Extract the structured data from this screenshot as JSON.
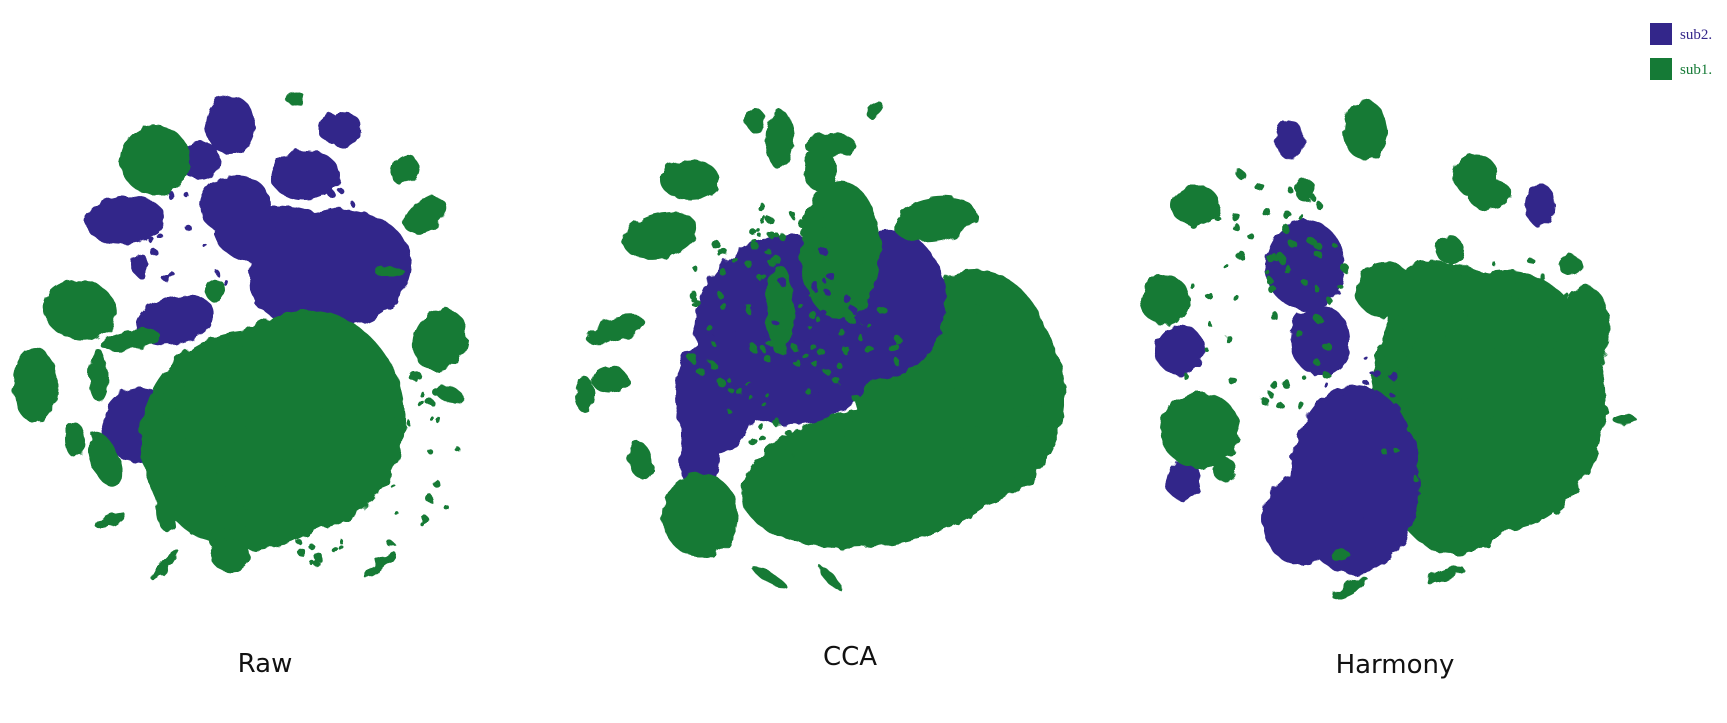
{
  "colors": {
    "sub2": "#33268a",
    "sub1": "#157a36"
  },
  "legend": {
    "items": [
      {
        "label": "sub2.",
        "color": "#33268a"
      },
      {
        "label": "sub1.",
        "color": "#157a36"
      }
    ]
  },
  "chart_data": [
    {
      "type": "scatter",
      "title": "Raw",
      "series": [
        {
          "name": "sub2.",
          "color": "#33268a"
        },
        {
          "name": "sub1.",
          "color": "#157a36"
        }
      ],
      "grid": false,
      "axes_visible": false,
      "legend_position": "top-right"
    },
    {
      "type": "scatter",
      "title": "CCA",
      "series": [
        {
          "name": "sub2.",
          "color": "#33268a"
        },
        {
          "name": "sub1.",
          "color": "#157a36"
        }
      ],
      "grid": false,
      "axes_visible": false,
      "legend_position": "top-right"
    },
    {
      "type": "scatter",
      "title": "Harmony",
      "series": [
        {
          "name": "sub2.",
          "color": "#33268a"
        },
        {
          "name": "sub1.",
          "color": "#157a36"
        }
      ],
      "grid": false,
      "axes_visible": false,
      "legend_position": "top-right"
    }
  ]
}
